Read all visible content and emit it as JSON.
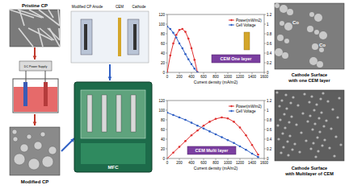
{
  "diagram": {
    "texts": [
      "Pristine CP",
      "DC Power Supply",
      "Modified CP",
      "Modified CP Anode",
      "CEM",
      "Cathode",
      "MFC",
      "Cathode Surface with one CEM layer",
      "Cathode Surface with Multilayer of CEM",
      "Co"
    ]
  },
  "chart_data": [
    {
      "type": "line",
      "annotation": "CEM One layer",
      "x_label": "Current density (mA/m2)",
      "x": [
        0,
        50,
        100,
        150,
        200,
        250,
        300,
        350,
        400,
        450,
        500
      ],
      "xlim": [
        0,
        1600
      ],
      "xticks": [
        0,
        200,
        400,
        600,
        800,
        1000,
        1200,
        1400,
        1600
      ],
      "ylim": [
        0,
        120
      ],
      "yticks": [
        0,
        20,
        40,
        60,
        80,
        100,
        120
      ],
      "y2lim": [
        0,
        1.2
      ],
      "y2ticks": [
        0,
        0.2,
        0.4,
        0.6,
        0.8,
        1,
        1.2
      ],
      "legend": "upper right",
      "grid": false,
      "series": [
        {
          "name": "Power(mW/m2)",
          "color": "#e03030",
          "marker": "circle",
          "line_style": "solid",
          "values": [
            0,
            35,
            60,
            78,
            88,
            90,
            84,
            70,
            50,
            26,
            0
          ]
        },
        {
          "name": "Cell Voltage",
          "color": "#2f5fc4",
          "marker": "circle",
          "line_style": "solid",
          "axis": "y2",
          "values": [
            0.95,
            0.9,
            0.82,
            0.72,
            0.6,
            0.5,
            0.38,
            0.27,
            0.17,
            0.08,
            0
          ]
        }
      ]
    },
    {
      "type": "line",
      "annotation": "CEM Multi layer",
      "x_label": "Current density (mA/m2)",
      "x": [
        0,
        100,
        200,
        300,
        400,
        500,
        600,
        700,
        800,
        900,
        1000,
        1100,
        1200,
        1300,
        1400,
        1500
      ],
      "xlim": [
        0,
        1600
      ],
      "xticks": [
        0,
        200,
        400,
        600,
        800,
        1000,
        1200,
        1400,
        1600
      ],
      "ylim": [
        0,
        120
      ],
      "yticks": [
        0,
        20,
        40,
        60,
        80,
        100,
        120
      ],
      "y2lim": [
        0,
        1.2
      ],
      "y2ticks": [
        0,
        0.2,
        0.4,
        0.6,
        0.8,
        1,
        1.2
      ],
      "legend": "upper right",
      "grid": false,
      "series": [
        {
          "name": "Power(mW/m2)",
          "color": "#e03030",
          "marker": "circle",
          "line_style": "solid",
          "values": [
            0,
            12,
            24,
            36,
            48,
            58,
            68,
            76,
            82,
            85,
            83,
            76,
            64,
            48,
            28,
            8
          ]
        },
        {
          "name": "Cell Voltage",
          "color": "#2f5fc4",
          "marker": "circle",
          "line_style": "solid",
          "axis": "y2",
          "values": [
            0.95,
            0.9,
            0.85,
            0.8,
            0.74,
            0.68,
            0.62,
            0.56,
            0.5,
            0.44,
            0.38,
            0.32,
            0.25,
            0.18,
            0.1,
            0.03
          ]
        }
      ]
    }
  ]
}
